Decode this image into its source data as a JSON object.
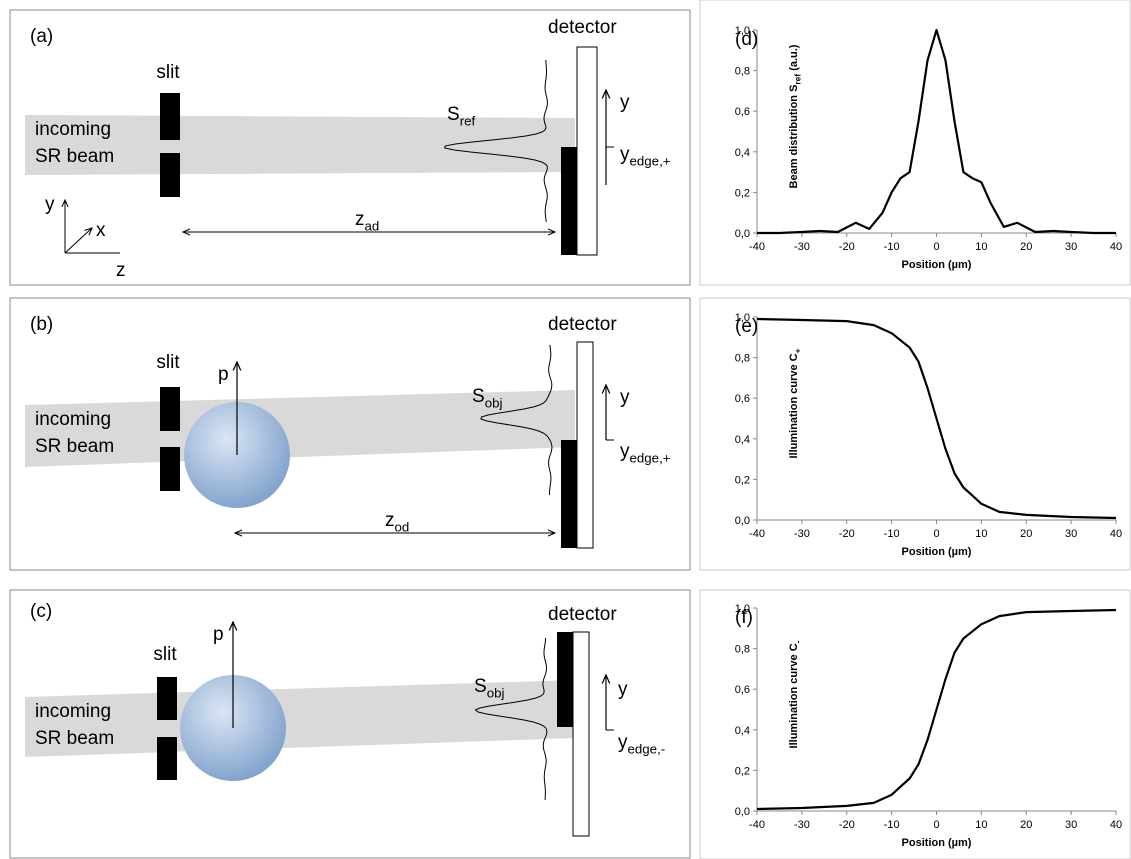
{
  "panels": [
    {
      "label": "(a)",
      "slit": "slit",
      "beam": [
        "incoming",
        "SR beam"
      ],
      "detector": "detector",
      "signal": {
        "main": "S",
        "sub": "ref"
      },
      "y": "y",
      "edge": {
        "main": "y",
        "sub": "edge,+"
      },
      "distance": {
        "main": "z",
        "sub": "ad"
      },
      "axes": [
        "y",
        "x",
        "z"
      ]
    },
    {
      "label": "(b)",
      "slit": "slit",
      "beam": [
        "incoming",
        "SR beam"
      ],
      "detector": "detector",
      "signal": {
        "main": "S",
        "sub": "obj"
      },
      "y": "y",
      "edge": {
        "main": "y",
        "sub": "edge,+"
      },
      "distance": {
        "main": "z",
        "sub": "od"
      },
      "object": "p"
    },
    {
      "label": "(c)",
      "slit": "slit",
      "beam": [
        "incoming",
        "SR beam"
      ],
      "detector": "detector",
      "signal": {
        "main": "S",
        "sub": "obj"
      },
      "y": "y",
      "edge": {
        "main": "y",
        "sub": "edge,-"
      },
      "object": "p"
    }
  ],
  "chart_data": [
    {
      "type": "line",
      "panel": "(d)",
      "ylabel": {
        "main": "Beam distribution S",
        "sub": "ref",
        "suffix": " (a.u.)"
      },
      "xlabel": "Position (µm)",
      "color": "#000000",
      "x": [
        -40,
        -35,
        -30,
        -26,
        -22,
        -18,
        -15,
        -12,
        -10,
        -8,
        -6,
        -4,
        -2,
        0,
        2,
        4,
        6,
        8,
        10,
        12,
        15,
        18,
        22,
        26,
        30,
        35,
        40
      ],
      "values": [
        0,
        0,
        0.005,
        0.01,
        0.005,
        0.05,
        0.02,
        0.1,
        0.2,
        0.27,
        0.3,
        0.55,
        0.85,
        1.0,
        0.85,
        0.55,
        0.3,
        0.27,
        0.25,
        0.15,
        0.03,
        0.05,
        0.005,
        0.01,
        0.005,
        0,
        0
      ],
      "xlim": [
        -40,
        40
      ],
      "ylim": [
        0,
        1
      ],
      "xticks": [
        -40,
        -30,
        -20,
        -10,
        0,
        10,
        20,
        30,
        40
      ],
      "yticks": [
        {
          "value": 0,
          "label": "0,0"
        },
        {
          "value": 0.2,
          "label": "0,2"
        },
        {
          "value": 0.4,
          "label": "0,4"
        },
        {
          "value": 0.6,
          "label": "0,6"
        },
        {
          "value": 0.8,
          "label": "0,8"
        },
        {
          "value": 1,
          "label": "1,0"
        }
      ]
    },
    {
      "type": "line",
      "panel": "(e)",
      "ylabel": {
        "main": "Illumination curve C",
        "sub": "+"
      },
      "xlabel": "Position (µm)",
      "color": "#000000",
      "x": [
        -40,
        -30,
        -20,
        -14,
        -10,
        -6,
        -4,
        -2,
        0,
        2,
        4,
        6,
        8,
        10,
        14,
        20,
        30,
        40
      ],
      "values": [
        0.99,
        0.985,
        0.98,
        0.96,
        0.92,
        0.85,
        0.78,
        0.65,
        0.5,
        0.35,
        0.23,
        0.16,
        0.12,
        0.08,
        0.04,
        0.025,
        0.015,
        0.01
      ],
      "xlim": [
        -40,
        40
      ],
      "ylim": [
        0,
        1
      ],
      "xticks": [
        -40,
        -30,
        -20,
        -10,
        0,
        10,
        20,
        30,
        40
      ],
      "yticks": [
        {
          "value": 0,
          "label": "0,0"
        },
        {
          "value": 0.2,
          "label": "0,2"
        },
        {
          "value": 0.4,
          "label": "0,4"
        },
        {
          "value": 0.6,
          "label": "0,6"
        },
        {
          "value": 0.8,
          "label": "0,8"
        },
        {
          "value": 1,
          "label": "1,0"
        }
      ]
    },
    {
      "type": "line",
      "panel": "(f)",
      "ylabel": {
        "main": "Illumination curve C",
        "sub": "-"
      },
      "xlabel": "Position (µm)",
      "color": "#000000",
      "x": [
        -40,
        -30,
        -20,
        -14,
        -10,
        -8,
        -6,
        -4,
        -2,
        0,
        2,
        4,
        6,
        10,
        14,
        20,
        30,
        40
      ],
      "values": [
        0.01,
        0.015,
        0.025,
        0.04,
        0.08,
        0.12,
        0.16,
        0.23,
        0.35,
        0.5,
        0.65,
        0.78,
        0.85,
        0.92,
        0.96,
        0.98,
        0.985,
        0.99
      ],
      "xlim": [
        -40,
        40
      ],
      "ylim": [
        0,
        1
      ],
      "xticks": [
        -40,
        -30,
        -20,
        -10,
        0,
        10,
        20,
        30,
        40
      ],
      "yticks": [
        {
          "value": 0,
          "label": "0,0"
        },
        {
          "value": 0.2,
          "label": "0,2"
        },
        {
          "value": 0.4,
          "label": "0,4"
        },
        {
          "value": 0.6,
          "label": "0,6"
        },
        {
          "value": 0.8,
          "label": "0,8"
        },
        {
          "value": 1,
          "label": "1,0"
        }
      ]
    }
  ]
}
